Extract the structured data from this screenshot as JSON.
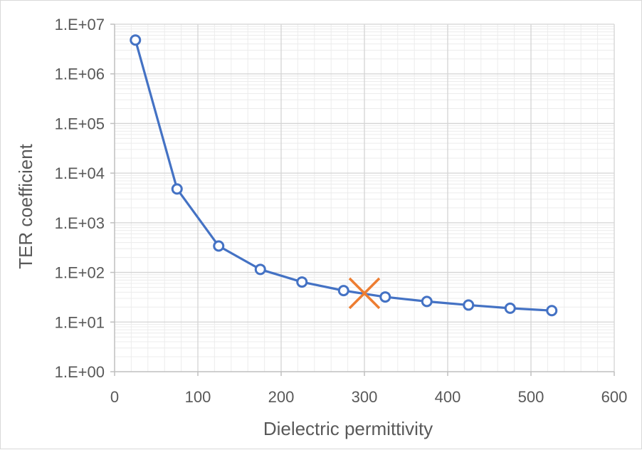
{
  "chart_data": {
    "type": "scatter",
    "xlabel": "Dielectric permittivity",
    "ylabel": "TER coefficient",
    "xlim": [
      0,
      600
    ],
    "ylim": [
      1,
      10000000
    ],
    "yscale": "log",
    "x_ticks": [
      0,
      100,
      200,
      300,
      400,
      500,
      600
    ],
    "y_ticks": [
      {
        "value": 1,
        "label": "1.E+00"
      },
      {
        "value": 10,
        "label": "1.E+01"
      },
      {
        "value": 100,
        "label": "1.E+02"
      },
      {
        "value": 1000,
        "label": "1.E+03"
      },
      {
        "value": 10000,
        "label": "1.E+04"
      },
      {
        "value": 100000,
        "label": "1.E+05"
      },
      {
        "value": 1000000,
        "label": "1.E+06"
      },
      {
        "value": 10000000,
        "label": "1.E+07"
      }
    ],
    "grid": true,
    "series": [
      {
        "style": "line-with-circle-markers",
        "color": "#4472C4",
        "x": [
          25,
          75,
          125,
          175,
          225,
          275,
          325,
          375,
          425,
          475,
          525
        ],
        "y": [
          4800000,
          4800,
          340,
          115,
          64,
          43,
          32,
          26,
          22,
          19,
          17
        ]
      },
      {
        "style": "x-marker",
        "color": "#ED7D31",
        "x": [
          300
        ],
        "y": [
          38
        ]
      }
    ]
  }
}
